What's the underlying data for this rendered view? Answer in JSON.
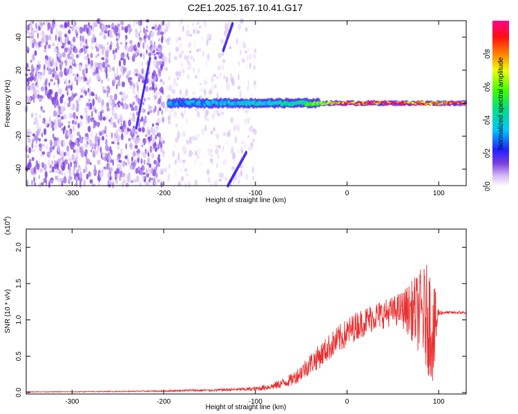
{
  "title": "C2E1.2025.167.10.41.G17",
  "colors": {
    "snr_line": "#e83030",
    "axis": "#000000",
    "spec_bg": "#ffffff"
  },
  "chart_data": [
    {
      "type": "heatmap",
      "xlabel": "Height of straight line (km)",
      "ylabel": "Frequency (Hz)",
      "xlim": [
        -350,
        130
      ],
      "ylim": [
        -50,
        50
      ],
      "x_ticks": [
        -300,
        -200,
        -100,
        0,
        100
      ],
      "y_ticks": [
        -40,
        -20,
        0,
        20,
        40
      ],
      "colorbar": {
        "label": "Normalized spectral amplitude",
        "range": [
          0,
          1
        ],
        "ticks": [
          0.0,
          0.2,
          0.4,
          0.6,
          0.8
        ],
        "tick_labels": [
          "0.0",
          "0.2",
          "0.4",
          "0.6",
          "0.8"
        ],
        "colormap": "rainbow (white-purple-blue-cyan-green-yellow-red-magenta)"
      },
      "features": [
        {
          "description": "noise speckle",
          "x_range": [
            -350,
            -200
          ],
          "freq_range": [
            -50,
            50
          ],
          "amplitude": 0.05
        },
        {
          "description": "faint noise",
          "x_range": [
            -200,
            -100
          ],
          "freq_range": [
            -50,
            50
          ],
          "amplitude": 0.02
        },
        {
          "description": "carrier line near 0 Hz",
          "x_range": [
            -195,
            130
          ],
          "freq_center": 0,
          "amplitude_profile": [
            [
              -195,
              0.3
            ],
            [
              -150,
              0.35
            ],
            [
              -100,
              0.4
            ],
            [
              -50,
              0.45
            ],
            [
              -30,
              0.6
            ],
            [
              0,
              0.9
            ],
            [
              50,
              0.95
            ],
            [
              90,
              0.8
            ],
            [
              130,
              0.95
            ]
          ]
        },
        {
          "description": "slanted streak",
          "x_from": -230,
          "x_to": -215,
          "freq_from": -15,
          "freq_to": 27
        },
        {
          "description": "slanted streak",
          "x_from": -135,
          "x_to": -125,
          "freq_from": 32,
          "freq_to": 48
        },
        {
          "description": "slanted streak",
          "x_from": -130,
          "x_to": -110,
          "freq_from": -50,
          "freq_to": -30
        }
      ]
    },
    {
      "type": "line",
      "xlabel": "Height of straight line (km)",
      "ylabel": "SNR (10 * v/v)",
      "y_scale_label": "(x10",
      "y_scale_exp": "4",
      "xlim": [
        -350,
        130
      ],
      "ylim": [
        -0.02,
        2.25
      ],
      "x_ticks": [
        -300,
        -200,
        -100,
        0,
        100
      ],
      "y_ticks": [
        0.0,
        0.5,
        1.0,
        1.5,
        2.0
      ],
      "y_tick_labels": [
        "0.0",
        "0.5",
        "1.0",
        "1.5",
        "2.0"
      ],
      "series": [
        {
          "x": [
            -350,
            -300,
            -250,
            -200,
            -175,
            -150,
            -125,
            -100,
            -90,
            -80,
            -70,
            -60,
            -50,
            -40,
            -30,
            -20,
            -10,
            0,
            10,
            20,
            30,
            40,
            50,
            60,
            70,
            80,
            85,
            90,
            95,
            100,
            105,
            110,
            120,
            130
          ],
          "y": [
            0.01,
            0.01,
            0.015,
            0.02,
            0.03,
            0.03,
            0.04,
            0.05,
            0.07,
            0.09,
            0.13,
            0.18,
            0.28,
            0.4,
            0.5,
            0.62,
            0.72,
            0.82,
            0.92,
            0.98,
            1.05,
            1.08,
            1.12,
            1.15,
            1.13,
            1.1,
            1.05,
            1.0,
            0.8,
            1.1,
            1.1,
            1.1,
            1.1,
            1.1
          ],
          "noise_amplitude": [
            0.005,
            0.005,
            0.007,
            0.01,
            0.015,
            0.015,
            0.02,
            0.03,
            0.04,
            0.05,
            0.07,
            0.09,
            0.12,
            0.15,
            0.17,
            0.18,
            0.2,
            0.2,
            0.2,
            0.2,
            0.2,
            0.2,
            0.2,
            0.25,
            0.4,
            0.6,
            0.7,
            0.8,
            0.7,
            0.05,
            0.02,
            0.02,
            0.02,
            0.02
          ]
        }
      ]
    }
  ]
}
